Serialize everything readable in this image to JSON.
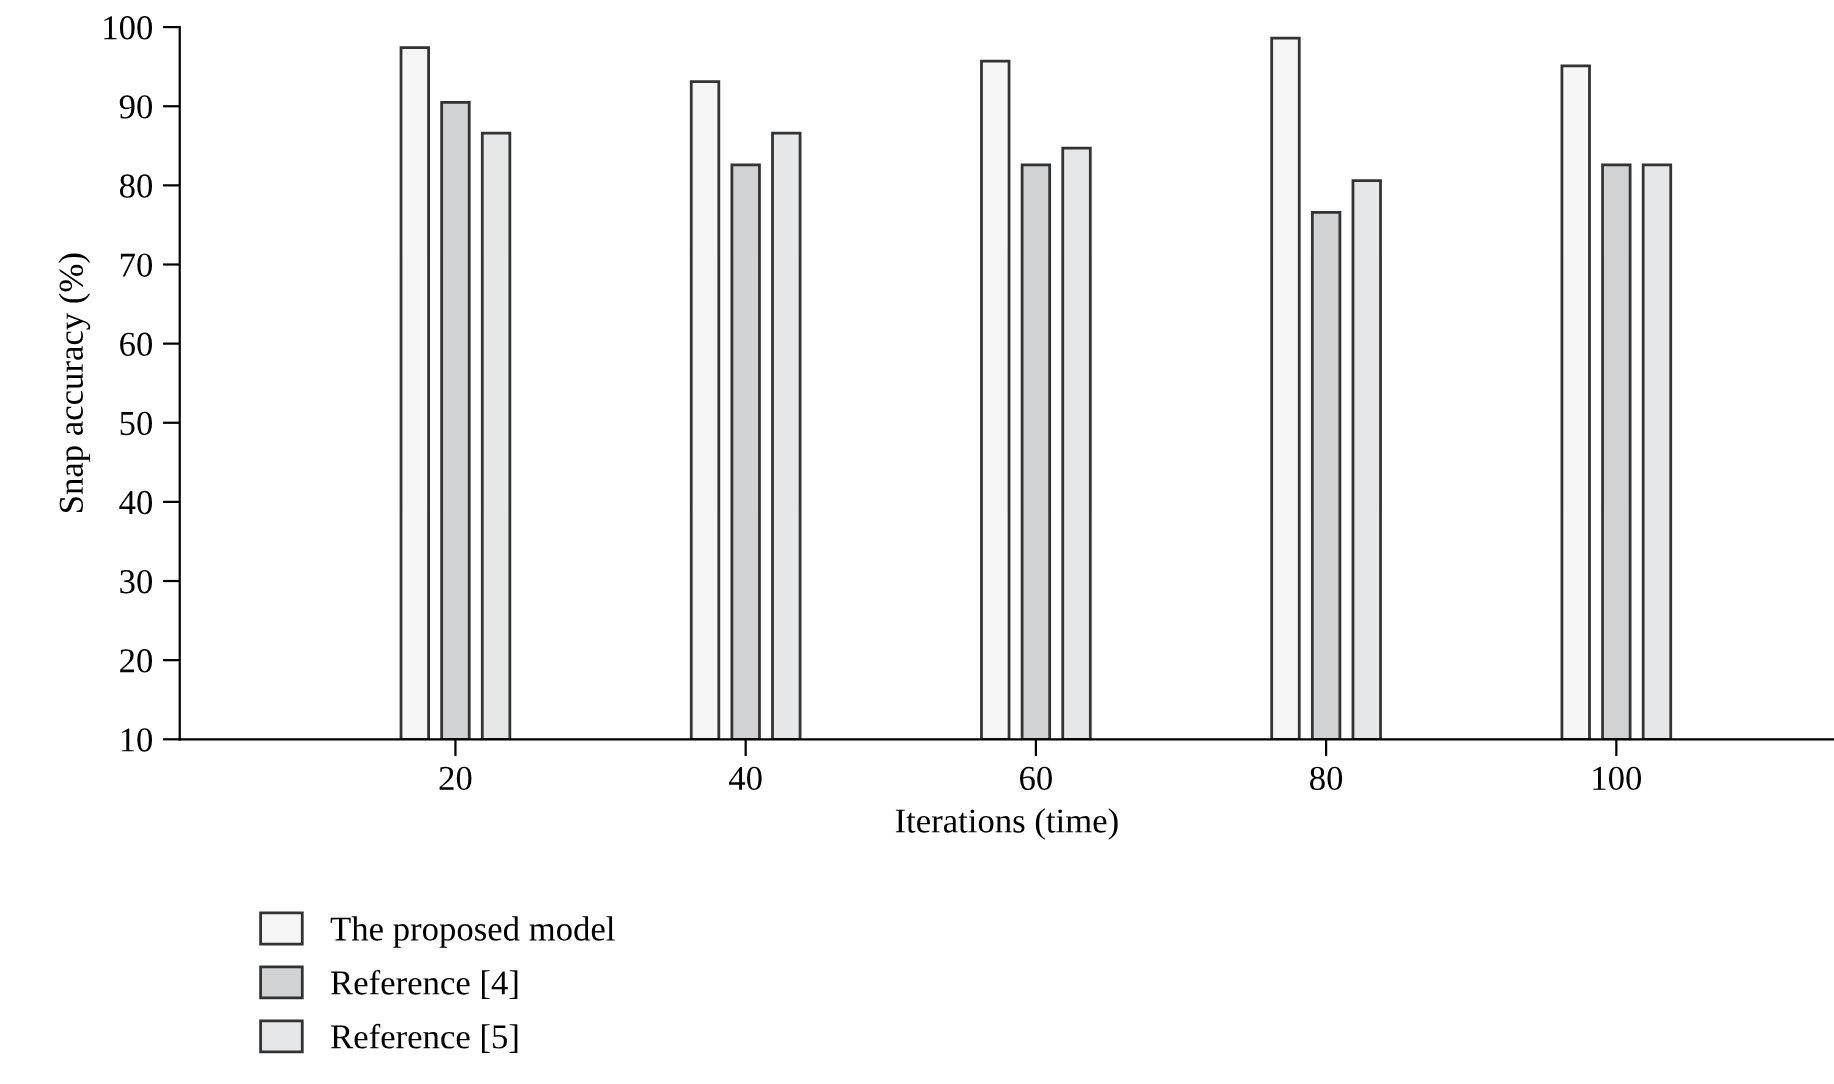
{
  "chart_data": {
    "type": "bar",
    "xlabel": "Iterations (time)",
    "ylabel": "Snap accuracy (%)",
    "categories": [
      "20",
      "40",
      "60",
      "80",
      "100"
    ],
    "series": [
      {
        "name": "The proposed model",
        "color": "#f5f5f5",
        "values": [
          97.4,
          93.1,
          95.7,
          98.6,
          95.1
        ]
      },
      {
        "name": "Reference [4]",
        "color": "#d1d2d4",
        "values": [
          90.5,
          82.6,
          82.6,
          76.6,
          82.6
        ]
      },
      {
        "name": "Reference [5]",
        "color": "#e6e7e8",
        "values": [
          86.6,
          86.6,
          84.7,
          80.6,
          82.6
        ]
      }
    ],
    "ylim": [
      10,
      100
    ],
    "yticks": [
      10,
      20,
      30,
      40,
      50,
      60,
      70,
      80,
      90,
      100
    ],
    "grid": false,
    "legend": "bottom left"
  }
}
